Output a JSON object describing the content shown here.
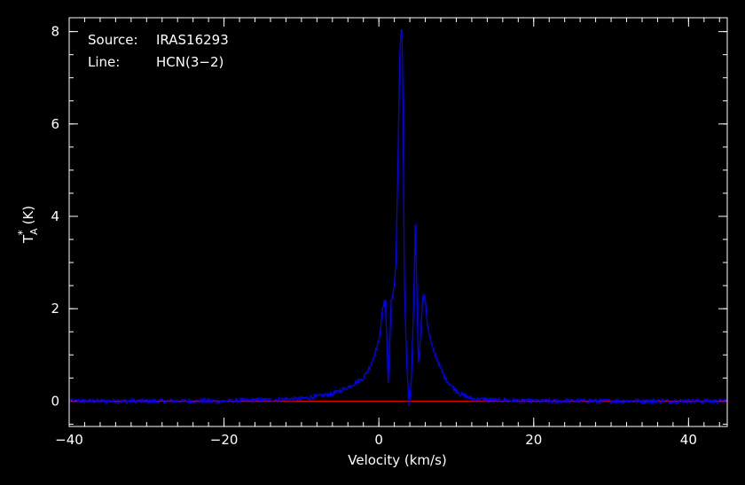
{
  "chart_data": {
    "type": "line",
    "xlabel": "Velocity (km/s)",
    "ylabel_main": "T",
    "ylabel_sub": "A",
    "ylabel_sup": "*",
    "ylabel_unit": "(K)",
    "xlim": [
      -40,
      45
    ],
    "ylim": [
      -0.55,
      8.3
    ],
    "x_ticks": [
      -40,
      -20,
      0,
      20,
      40
    ],
    "x_tick_labels": [
      "−40",
      "−20",
      "0",
      "20",
      "40"
    ],
    "x_minor_step": 2,
    "y_ticks": [
      0,
      2,
      4,
      6,
      8
    ],
    "y_tick_labels": [
      "0",
      "2",
      "4",
      "6",
      "8"
    ],
    "y_minor_step": 0.5,
    "annotations": [
      {
        "label": "Source:",
        "value": "IRAS16293"
      },
      {
        "label": "Line:",
        "value": "HCN(3−2)"
      }
    ],
    "baseline": {
      "y": 0,
      "color": "#ff0000"
    },
    "series": [
      {
        "color": "#0000ff",
        "x": [
          -40,
          -30,
          -20,
          -10,
          -6,
          -4,
          -2,
          -1,
          0,
          0.5,
          0.8,
          1.0,
          1.2,
          1.4,
          1.6,
          1.8,
          2.0,
          2.2,
          2.5,
          2.7,
          2.9,
          3.0,
          3.1,
          3.3,
          3.6,
          3.9,
          4.2,
          4.5,
          4.7,
          4.9,
          5.1,
          5.4,
          5.7,
          6.0,
          6.3,
          6.8,
          7.5,
          8.5,
          9.5,
          10.5,
          12,
          15,
          20,
          30,
          45
        ],
        "y": [
          0,
          0,
          0,
          0.05,
          0.15,
          0.3,
          0.5,
          0.8,
          1.3,
          2.0,
          2.2,
          1.5,
          0.4,
          1.2,
          2.2,
          2.3,
          2.5,
          3.0,
          5.5,
          7.5,
          8.05,
          7.8,
          6.5,
          2.5,
          0.8,
          -0.15,
          0.5,
          2.2,
          3.8,
          2.5,
          0.8,
          1.5,
          2.3,
          2.2,
          1.6,
          1.2,
          0.9,
          0.5,
          0.3,
          0.15,
          0.05,
          0.02,
          0,
          0,
          0
        ]
      }
    ]
  }
}
